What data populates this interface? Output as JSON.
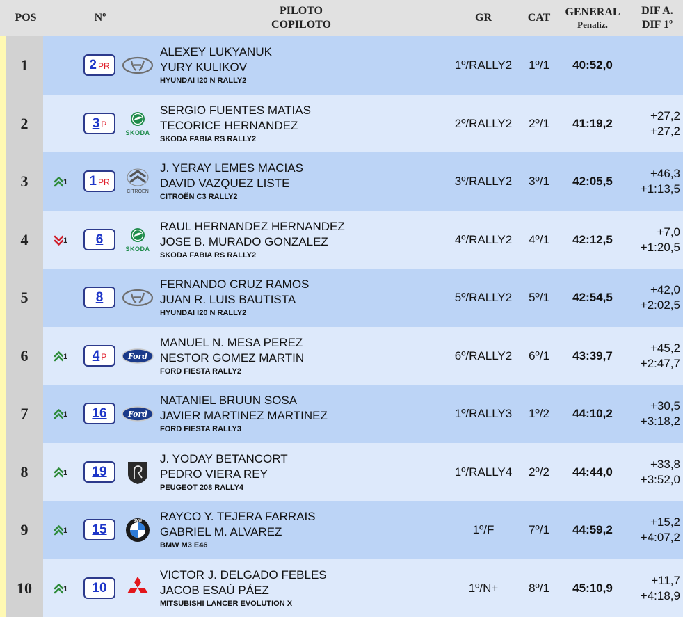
{
  "header": {
    "pos": "POS",
    "num": "Nº",
    "piloto": "PILOTO",
    "copiloto": "COPILOTO",
    "gr": "GR",
    "cat": "CAT",
    "general": "GENERAL",
    "penaliz": "Penaliz.",
    "dif_a": "DIF A.",
    "dif_1": "DIF 1º"
  },
  "rows": [
    {
      "pos": "1",
      "trend_icon": "",
      "trend": "",
      "num": "2",
      "tag": "PR",
      "logo": "hyundai-logo",
      "piloto": "ALEXEY LUKYANUK",
      "copiloto": "YURY KULIKOV",
      "car": "HYUNDAI I20 N RALLY2",
      "gr": "1º/RALLY2",
      "cat": "1º/1",
      "general": "40:52,0",
      "dif_a": "",
      "dif_1": ""
    },
    {
      "pos": "2",
      "trend_icon": "",
      "trend": "",
      "num": "3",
      "tag": "P",
      "logo": "skoda-logo",
      "piloto": "SERGIO FUENTES MATIAS",
      "copiloto": "TECORICE HERNANDEZ",
      "car": "SKODA FABIA RS RALLY2",
      "gr": "2º/RALLY2",
      "cat": "2º/1",
      "general": "41:19,2",
      "dif_a": "+27,2",
      "dif_1": "+27,2"
    },
    {
      "pos": "3",
      "trend_icon": "up",
      "trend": "1",
      "num": "1",
      "tag": "PR",
      "logo": "citroen-logo",
      "piloto": "J. YERAY LEMES MACIAS",
      "copiloto": "DAVID VAZQUEZ LISTE",
      "car": "CITROËN C3 RALLY2",
      "gr": "3º/RALLY2",
      "cat": "3º/1",
      "general": "42:05,5",
      "dif_a": "+46,3",
      "dif_1": "+1:13,5"
    },
    {
      "pos": "4",
      "trend_icon": "down",
      "trend": "1",
      "num": "6",
      "tag": "",
      "logo": "skoda-logo",
      "piloto": "RAUL HERNANDEZ HERNANDEZ",
      "copiloto": "JOSE B. MURADO GONZALEZ",
      "car": "SKODA FABIA RS RALLY2",
      "gr": "4º/RALLY2",
      "cat": "4º/1",
      "general": "42:12,5",
      "dif_a": "+7,0",
      "dif_1": "+1:20,5"
    },
    {
      "pos": "5",
      "trend_icon": "",
      "trend": "",
      "num": "8",
      "tag": "",
      "logo": "hyundai-logo",
      "piloto": "FERNANDO CRUZ RAMOS",
      "copiloto": "JUAN R. LUIS BAUTISTA",
      "car": "HYUNDAI I20 N RALLY2",
      "gr": "5º/RALLY2",
      "cat": "5º/1",
      "general": "42:54,5",
      "dif_a": "+42,0",
      "dif_1": "+2:02,5"
    },
    {
      "pos": "6",
      "trend_icon": "up",
      "trend": "1",
      "num": "4",
      "tag": "P",
      "logo": "ford-logo",
      "piloto": "MANUEL N. MESA PEREZ",
      "copiloto": "NESTOR GOMEZ MARTIN",
      "car": "FORD FIESTA RALLY2",
      "gr": "6º/RALLY2",
      "cat": "6º/1",
      "general": "43:39,7",
      "dif_a": "+45,2",
      "dif_1": "+2:47,7"
    },
    {
      "pos": "7",
      "trend_icon": "up",
      "trend": "1",
      "num": "16",
      "tag": "",
      "logo": "ford-logo",
      "piloto": "NATANIEL BRUUN SOSA",
      "copiloto": "JAVIER MARTINEZ MARTINEZ",
      "car": "FORD FIESTA RALLY3",
      "gr": "1º/RALLY3",
      "cat": "1º/2",
      "general": "44:10,2",
      "dif_a": "+30,5",
      "dif_1": "+3:18,2"
    },
    {
      "pos": "8",
      "trend_icon": "up",
      "trend": "1",
      "num": "19",
      "tag": "",
      "logo": "peugeot-logo",
      "piloto": "J. YODAY BETANCORT",
      "copiloto": "PEDRO VIERA REY",
      "car": "PEUGEOT 208 RALLY4",
      "gr": "1º/RALLY4",
      "cat": "2º/2",
      "general": "44:44,0",
      "dif_a": "+33,8",
      "dif_1": "+3:52,0"
    },
    {
      "pos": "9",
      "trend_icon": "up",
      "trend": "1",
      "num": "15",
      "tag": "",
      "logo": "bmw-logo",
      "piloto": "RAYCO Y. TEJERA FARRAIS",
      "copiloto": "GABRIEL M. ALVAREZ",
      "car": "BMW M3 E46",
      "gr": "1º/F",
      "cat": "7º/1",
      "general": "44:59,2",
      "dif_a": "+15,2",
      "dif_1": "+4:07,2"
    },
    {
      "pos": "10",
      "trend_icon": "up",
      "trend": "1",
      "num": "10",
      "tag": "",
      "logo": "mitsubishi-logo",
      "piloto": "VICTOR J. DELGADO FEBLES",
      "copiloto": "JACOB ESAÚ PÁEZ",
      "car": "MITSUBISHI LANCER EVOLUTION X",
      "gr": "1º/N+",
      "cat": "8º/1",
      "general": "45:10,9",
      "dif_a": "+11,7",
      "dif_1": "+4:18,9"
    }
  ],
  "logo_text": {
    "skoda": "SKODA",
    "citroen": "CITROËN",
    "ford": "Ford",
    "bmw": "BMW"
  },
  "colors": {
    "header_bg": "#e1e1e1",
    "row_odd": "#bcd4f6",
    "row_even": "#dde9fb",
    "pos_bg": "#d2d2d2",
    "strip": "#fff9b3",
    "link": "#1e36c8",
    "box_border": "#2c3a8c",
    "tag_red": "#e0202c",
    "up_green": "#2e8b3a",
    "down_red": "#d0202c"
  }
}
